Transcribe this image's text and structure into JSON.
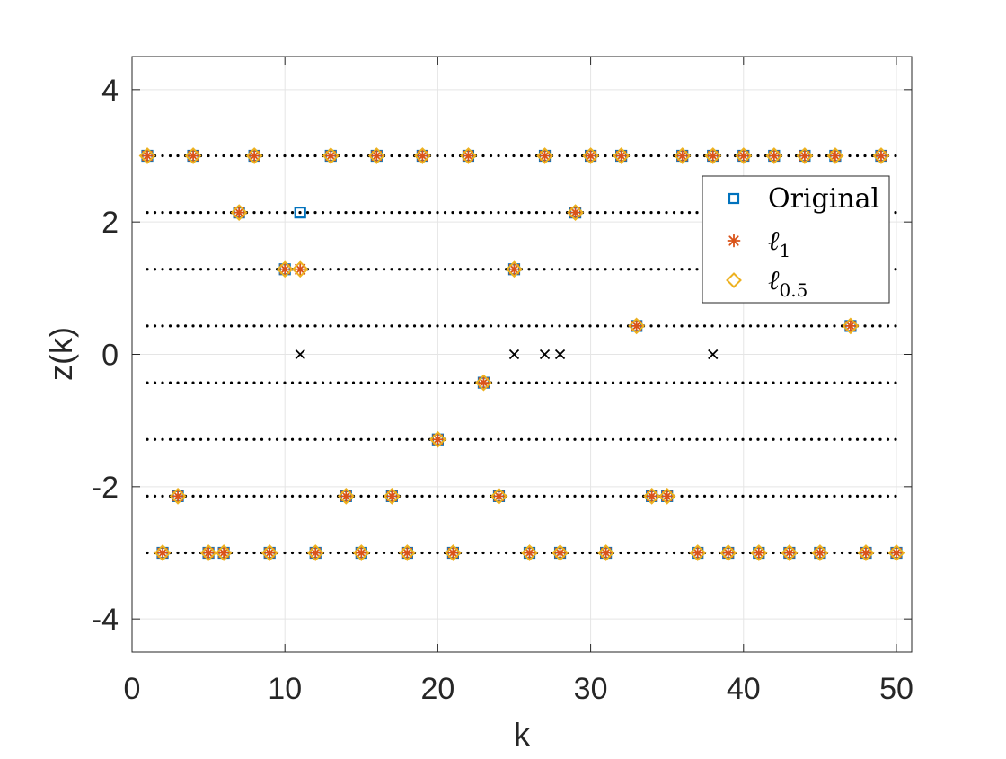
{
  "chart_data": {
    "type": "scatter",
    "title": "",
    "xlabel": "k",
    "ylabel": "z(k)",
    "xlim": [
      0,
      51
    ],
    "ylim": [
      -4.5,
      4.5
    ],
    "xticks": [
      0,
      10,
      20,
      30,
      40,
      50
    ],
    "yticks": [
      -4,
      -2,
      0,
      2,
      4
    ],
    "xtick_labels": [
      "0",
      "10",
      "20",
      "30",
      "40",
      "50"
    ],
    "ytick_labels": [
      "-4",
      "-2",
      "0",
      "2",
      "4"
    ],
    "grid": true,
    "legend_position": "top-right",
    "levels": [
      3.0,
      2.143,
      1.286,
      0.429,
      -0.429,
      -1.286,
      -2.143,
      -3.0
    ],
    "level_k_range": [
      1,
      50
    ],
    "series": [
      {
        "name": "Original",
        "marker": "square",
        "color": "#0072BD",
        "points": [
          [
            1,
            3.0
          ],
          [
            2,
            -3.0
          ],
          [
            3,
            -2.143
          ],
          [
            4,
            3.0
          ],
          [
            5,
            -3.0
          ],
          [
            6,
            -3.0
          ],
          [
            7,
            2.143
          ],
          [
            8,
            3.0
          ],
          [
            9,
            -3.0
          ],
          [
            10,
            1.286
          ],
          [
            11,
            2.143
          ],
          [
            12,
            -3.0
          ],
          [
            13,
            3.0
          ],
          [
            14,
            -2.143
          ],
          [
            15,
            -3.0
          ],
          [
            16,
            3.0
          ],
          [
            17,
            -2.143
          ],
          [
            18,
            -3.0
          ],
          [
            19,
            3.0
          ],
          [
            20,
            -1.286
          ],
          [
            21,
            -3.0
          ],
          [
            22,
            3.0
          ],
          [
            23,
            -0.429
          ],
          [
            24,
            -2.143
          ],
          [
            25,
            1.286
          ],
          [
            26,
            -3.0
          ],
          [
            27,
            3.0
          ],
          [
            28,
            -3.0
          ],
          [
            29,
            2.143
          ],
          [
            30,
            3.0
          ],
          [
            31,
            -3.0
          ],
          [
            32,
            3.0
          ],
          [
            33,
            0.429
          ],
          [
            34,
            -2.143
          ],
          [
            35,
            -2.143
          ],
          [
            36,
            3.0
          ],
          [
            37,
            -3.0
          ],
          [
            38,
            3.0
          ],
          [
            39,
            -3.0
          ],
          [
            40,
            3.0
          ],
          [
            41,
            -3.0
          ],
          [
            42,
            3.0
          ],
          [
            43,
            -3.0
          ],
          [
            44,
            3.0
          ],
          [
            45,
            -3.0
          ],
          [
            46,
            3.0
          ],
          [
            47,
            0.429
          ],
          [
            48,
            -3.0
          ],
          [
            49,
            3.0
          ],
          [
            50,
            -3.0
          ]
        ]
      },
      {
        "name": "ℓ1",
        "marker": "asterisk",
        "color": "#D95319",
        "points": [
          [
            1,
            3.0
          ],
          [
            2,
            -3.0
          ],
          [
            3,
            -2.143
          ],
          [
            4,
            3.0
          ],
          [
            5,
            -3.0
          ],
          [
            6,
            -3.0
          ],
          [
            7,
            2.143
          ],
          [
            8,
            3.0
          ],
          [
            9,
            -3.0
          ],
          [
            10,
            1.286
          ],
          [
            11,
            1.286
          ],
          [
            12,
            -3.0
          ],
          [
            13,
            3.0
          ],
          [
            14,
            -2.143
          ],
          [
            15,
            -3.0
          ],
          [
            16,
            3.0
          ],
          [
            17,
            -2.143
          ],
          [
            18,
            -3.0
          ],
          [
            19,
            3.0
          ],
          [
            20,
            -1.286
          ],
          [
            21,
            -3.0
          ],
          [
            22,
            3.0
          ],
          [
            23,
            -0.429
          ],
          [
            24,
            -2.143
          ],
          [
            25,
            1.286
          ],
          [
            26,
            -3.0
          ],
          [
            27,
            3.0
          ],
          [
            28,
            -3.0
          ],
          [
            29,
            2.143
          ],
          [
            30,
            3.0
          ],
          [
            31,
            -3.0
          ],
          [
            32,
            3.0
          ],
          [
            33,
            0.429
          ],
          [
            34,
            -2.143
          ],
          [
            35,
            -2.143
          ],
          [
            36,
            3.0
          ],
          [
            37,
            -3.0
          ],
          [
            38,
            3.0
          ],
          [
            39,
            -3.0
          ],
          [
            40,
            3.0
          ],
          [
            41,
            -3.0
          ],
          [
            42,
            3.0
          ],
          [
            43,
            -3.0
          ],
          [
            44,
            3.0
          ],
          [
            45,
            -3.0
          ],
          [
            46,
            3.0
          ],
          [
            47,
            0.429
          ],
          [
            48,
            -3.0
          ],
          [
            49,
            3.0
          ],
          [
            50,
            -3.0
          ]
        ]
      },
      {
        "name": "ℓ0.5",
        "marker": "diamond",
        "color": "#EDB120",
        "points": [
          [
            1,
            3.0
          ],
          [
            2,
            -3.0
          ],
          [
            3,
            -2.143
          ],
          [
            4,
            3.0
          ],
          [
            5,
            -3.0
          ],
          [
            6,
            -3.0
          ],
          [
            7,
            2.143
          ],
          [
            8,
            3.0
          ],
          [
            9,
            -3.0
          ],
          [
            10,
            1.286
          ],
          [
            11,
            1.286
          ],
          [
            12,
            -3.0
          ],
          [
            13,
            3.0
          ],
          [
            14,
            -2.143
          ],
          [
            15,
            -3.0
          ],
          [
            16,
            3.0
          ],
          [
            17,
            -2.143
          ],
          [
            18,
            -3.0
          ],
          [
            19,
            3.0
          ],
          [
            20,
            -1.286
          ],
          [
            21,
            -3.0
          ],
          [
            22,
            3.0
          ],
          [
            23,
            -0.429
          ],
          [
            24,
            -2.143
          ],
          [
            25,
            1.286
          ],
          [
            26,
            -3.0
          ],
          [
            27,
            3.0
          ],
          [
            28,
            -3.0
          ],
          [
            29,
            2.143
          ],
          [
            30,
            3.0
          ],
          [
            31,
            -3.0
          ],
          [
            32,
            3.0
          ],
          [
            33,
            0.429
          ],
          [
            34,
            -2.143
          ],
          [
            35,
            -2.143
          ],
          [
            36,
            3.0
          ],
          [
            37,
            -3.0
          ],
          [
            38,
            3.0
          ],
          [
            39,
            -3.0
          ],
          [
            40,
            3.0
          ],
          [
            41,
            -3.0
          ],
          [
            42,
            3.0
          ],
          [
            43,
            -3.0
          ],
          [
            44,
            3.0
          ],
          [
            45,
            -3.0
          ],
          [
            46,
            3.0
          ],
          [
            47,
            0.429
          ],
          [
            48,
            -3.0
          ],
          [
            49,
            3.0
          ],
          [
            50,
            -3.0
          ]
        ]
      }
    ],
    "cross_markers": {
      "color": "#000000",
      "points": [
        [
          11,
          0
        ],
        [
          25,
          0
        ],
        [
          27,
          0
        ],
        [
          28,
          0
        ],
        [
          38,
          0
        ]
      ]
    },
    "legend": [
      {
        "label_base": "Original",
        "label_sub": "",
        "marker": "square",
        "color": "#0072BD"
      },
      {
        "label_base": "ℓ",
        "label_sub": "1",
        "marker": "asterisk",
        "color": "#D95319"
      },
      {
        "label_base": "ℓ",
        "label_sub": "0.5",
        "marker": "diamond",
        "color": "#EDB120"
      }
    ]
  }
}
